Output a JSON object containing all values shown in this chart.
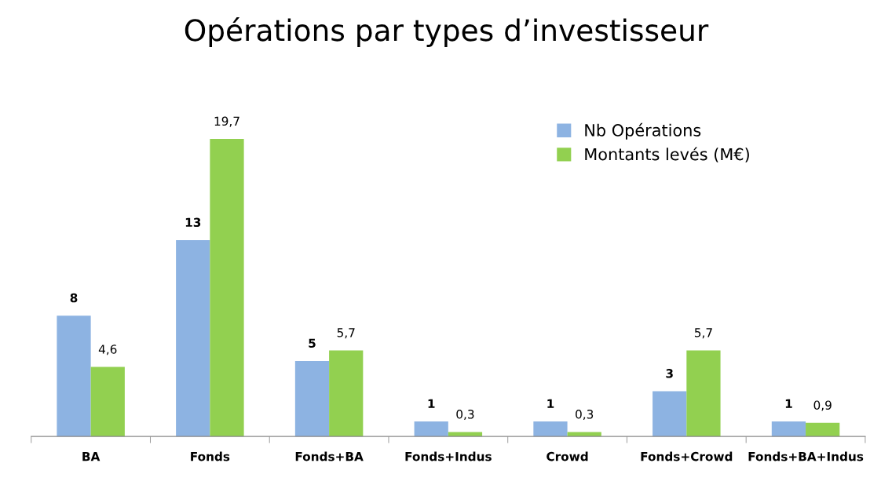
{
  "chart_data": {
    "type": "bar",
    "title": "Opérations par types d’investisseur",
    "categories": [
      "BA",
      "Fonds",
      "Fonds+BA",
      "Fonds+Indus",
      "Crowd",
      "Fonds+Crowd",
      "Fonds+BA+Indus"
    ],
    "series": [
      {
        "name": "Nb Opérations",
        "color": "#8db3e2",
        "values": [
          8,
          13,
          5,
          1,
          1,
          3,
          1
        ],
        "value_labels": [
          "8",
          "13",
          "5",
          "1",
          "1",
          "3",
          "1"
        ]
      },
      {
        "name": "Montants levés (M€)",
        "color": "#92d050",
        "values": [
          4.6,
          19.7,
          5.7,
          0.3,
          0.3,
          5.7,
          0.9
        ],
        "value_labels": [
          "4,6",
          "19,7",
          "5,7",
          "0,3",
          "0,3",
          "5,7",
          "0,9"
        ]
      }
    ],
    "legend": "top right",
    "grid": false
  }
}
